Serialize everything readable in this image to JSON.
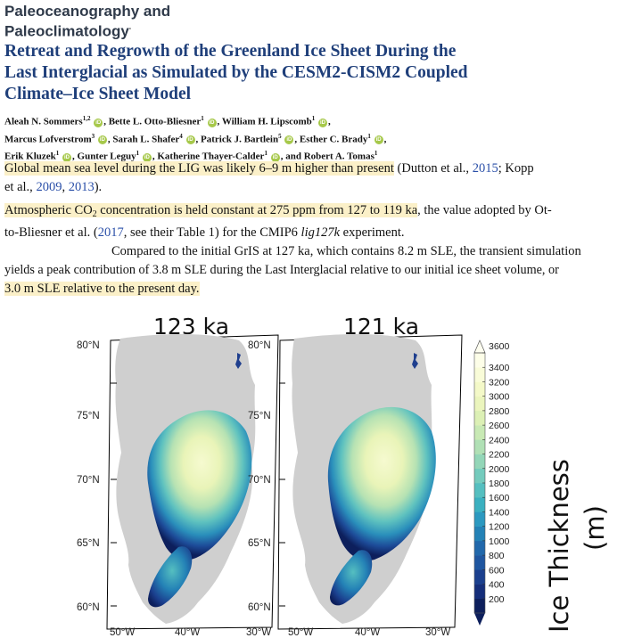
{
  "journal": {
    "line1": "Paleoceanography and",
    "line2": "Paleoclimatology"
  },
  "title": {
    "line1": "Retreat and Regrowth of the Greenland Ice Sheet During the",
    "line2": "Last Interglacial as Simulated by the CESM2-CISM2 Coupled",
    "line3": "Climate–Ice Sheet Model"
  },
  "authors": [
    {
      "name": "Aleah N. Sommers",
      "aff": "1,2"
    },
    {
      "name": "Bette L. Otto-Bliesner",
      "aff": "1"
    },
    {
      "name": "William H. Lipscomb",
      "aff": "1"
    },
    {
      "name": "Marcus Lofverstrom",
      "aff": "3"
    },
    {
      "name": "Sarah L. Shafer",
      "aff": "4"
    },
    {
      "name": "Patrick J. Bartlein",
      "aff": "5"
    },
    {
      "name": "Esther C. Brady",
      "aff": "1"
    },
    {
      "name": "Erik Kluzek",
      "aff": "1"
    },
    {
      "name": "Gunter Leguy",
      "aff": "1"
    },
    {
      "name": "Katherine Thayer-Calder",
      "aff": "1"
    },
    {
      "name": "Robert A. Tomas",
      "aff": "1"
    }
  ],
  "orcid_glyph": "iD",
  "paragraph1": {
    "highlight": "Global mean sea level during the LIG was likely 6–9 m higher than present",
    "pre": " (Dutton et al., ",
    "cite1": "2015",
    "mid": "; Kopp",
    "line2_pre": "et al., ",
    "cite2": "2009",
    "sep": ", ",
    "cite3": "2013",
    "end": ")."
  },
  "paragraph2": {
    "hl_a": "Atmospheric CO",
    "hl_sub": "2",
    "hl_b": " concentration is held constant at 275 ppm from 127 to 119 ka",
    "rest": ", the value adopted by Ot-",
    "line2_pre": "to-Bliesner et al. (",
    "cite": "2017",
    "line2_post": ", see their Table 1) for the CMIP6 ",
    "italic": "lig127k",
    "line2_end": " experiment."
  },
  "paragraph3": {
    "line1": "Compared to the initial GrIS at 127 ka, which contains 8.2 m SLE, the transient simulation",
    "line2": "yields a peak contribution of 3.8 m SLE during the Last Interglacial relative to our initial ice sheet volume, or",
    "hl": "3.0 m SLE relative to the present day."
  },
  "panels": [
    {
      "label": "123 ka"
    },
    {
      "label": "121 ka"
    }
  ],
  "lat_labels": [
    "80°N",
    "75°N",
    "70°N",
    "65°N",
    "60°N"
  ],
  "lon_labels": [
    "50°W",
    "40°W",
    "30°W"
  ],
  "colorbar": {
    "title_line1": "Ice Thickness",
    "title_line2": "(m)",
    "ticks": [
      "200",
      "400",
      "600",
      "800",
      "1000",
      "1200",
      "1400",
      "1600",
      "1800",
      "2000",
      "2200",
      "2400",
      "2600",
      "2800",
      "3000",
      "3200",
      "3400",
      "3600"
    ],
    "colors": [
      "#0d1f5c",
      "#152e7a",
      "#1b3f8e",
      "#1f56a0",
      "#2168ab",
      "#2482b6",
      "#2c99c0",
      "#3bb0c0",
      "#55bfc0",
      "#74cbbd",
      "#93d6b8",
      "#b0e0b5",
      "#c8e9b4",
      "#dcf0b5",
      "#ebf5bd",
      "#f4f9c8",
      "#f9fcd8",
      "#fdfee8"
    ]
  },
  "colors": {
    "land": "#cfcfcf",
    "title_blue": "#1f3f7a",
    "highlight": "#fbf0c8",
    "link": "#2a4fa8"
  }
}
